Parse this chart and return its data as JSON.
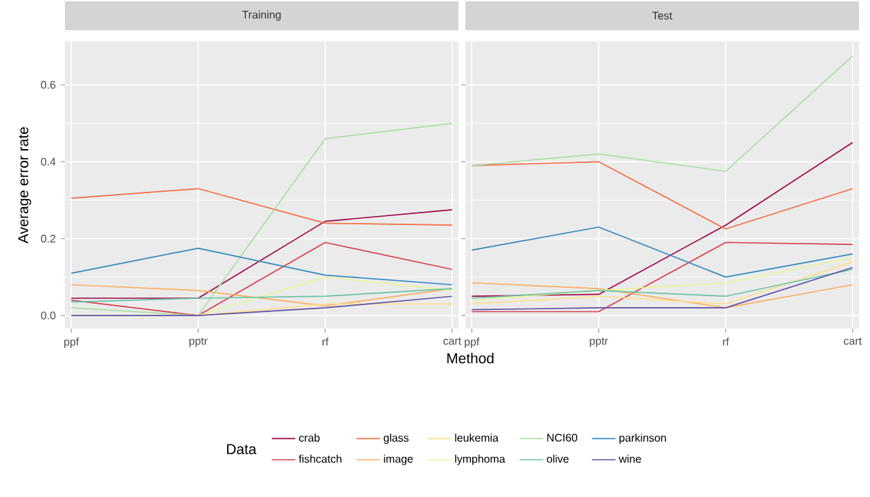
{
  "chart_data": [
    {
      "type": "line",
      "title": "Training",
      "xlabel": "Method",
      "ylabel": "Average error rate",
      "legend_title": "Data",
      "legend": "bottom",
      "grid": true,
      "categories": [
        "ppf",
        "pptr",
        "rf",
        "cart"
      ],
      "ylim": [
        -0.034,
        0.713
      ],
      "yticks": [
        {
          "value": 0,
          "label": "0.0"
        },
        {
          "value": 0.2,
          "label": "0.2"
        },
        {
          "value": 0.4,
          "label": "0.4"
        },
        {
          "value": 0.6,
          "label": "0.6"
        }
      ],
      "series": [
        {
          "name": "crab",
          "color": "#9e0142",
          "values": [
            0.045,
            0.045,
            0.245,
            0.275
          ]
        },
        {
          "name": "fishcatch",
          "color": "#d53e4f",
          "values": [
            0.04,
            0,
            0.19,
            0.12
          ]
        },
        {
          "name": "glass",
          "color": "#f46d43",
          "values": [
            0.305,
            0.33,
            0.24,
            0.235
          ]
        },
        {
          "name": "image",
          "color": "#fdae61",
          "values": [
            0.08,
            0.065,
            0.025,
            0.07
          ]
        },
        {
          "name": "leukemia",
          "color": "#fee08b",
          "values": [
            0,
            0,
            0.03,
            0.03
          ]
        },
        {
          "name": "lymphoma",
          "color": "#e6f598",
          "values": [
            0,
            0,
            0.1,
            0.065
          ]
        },
        {
          "name": "NCI60",
          "color": "#abdda4",
          "values": [
            0.02,
            0,
            0.46,
            0.5
          ]
        },
        {
          "name": "olive",
          "color": "#66c2a5",
          "values": [
            0.035,
            0.045,
            0.05,
            0.07
          ]
        },
        {
          "name": "parkinson",
          "color": "#3288bd",
          "values": [
            0.11,
            0.175,
            0.105,
            0.08
          ]
        },
        {
          "name": "wine",
          "color": "#5e4fa2",
          "values": [
            0,
            0,
            0.02,
            0.05
          ]
        }
      ]
    },
    {
      "type": "line",
      "title": "Test",
      "grid": true,
      "tick_labels": "x",
      "categories": [
        "ppf",
        "pptr",
        "rf",
        "cart"
      ],
      "ylim": [
        -0.034,
        0.713
      ],
      "yticks": [
        0,
        0.2,
        0.4,
        0.6
      ],
      "series": [
        {
          "color": "#9e0142",
          "values": [
            0.05,
            0.055,
            0.235,
            0.45
          ]
        },
        {
          "color": "#d53e4f",
          "values": [
            0.01,
            0.01,
            0.19,
            0.185
          ]
        },
        {
          "color": "#f46d43",
          "values": [
            0.39,
            0.4,
            0.225,
            0.33
          ]
        },
        {
          "color": "#fdae61",
          "values": [
            0.085,
            0.07,
            0.02,
            0.08
          ]
        },
        {
          "color": "#fee08b",
          "values": [
            0.03,
            0.05,
            0.03,
            0.14
          ]
        },
        {
          "color": "#e6f598",
          "values": [
            0.04,
            0.065,
            0.085,
            0.15
          ]
        },
        {
          "color": "#abdda4",
          "values": [
            0.39,
            0.42,
            0.375,
            0.675
          ]
        },
        {
          "color": "#66c2a5",
          "values": [
            0.045,
            0.065,
            0.05,
            0.12
          ]
        },
        {
          "color": "#3288bd",
          "values": [
            0.17,
            0.23,
            0.1,
            0.16
          ]
        },
        {
          "color": "#5e4fa2",
          "values": [
            0.015,
            0.02,
            0.02,
            0.125
          ]
        }
      ]
    }
  ]
}
